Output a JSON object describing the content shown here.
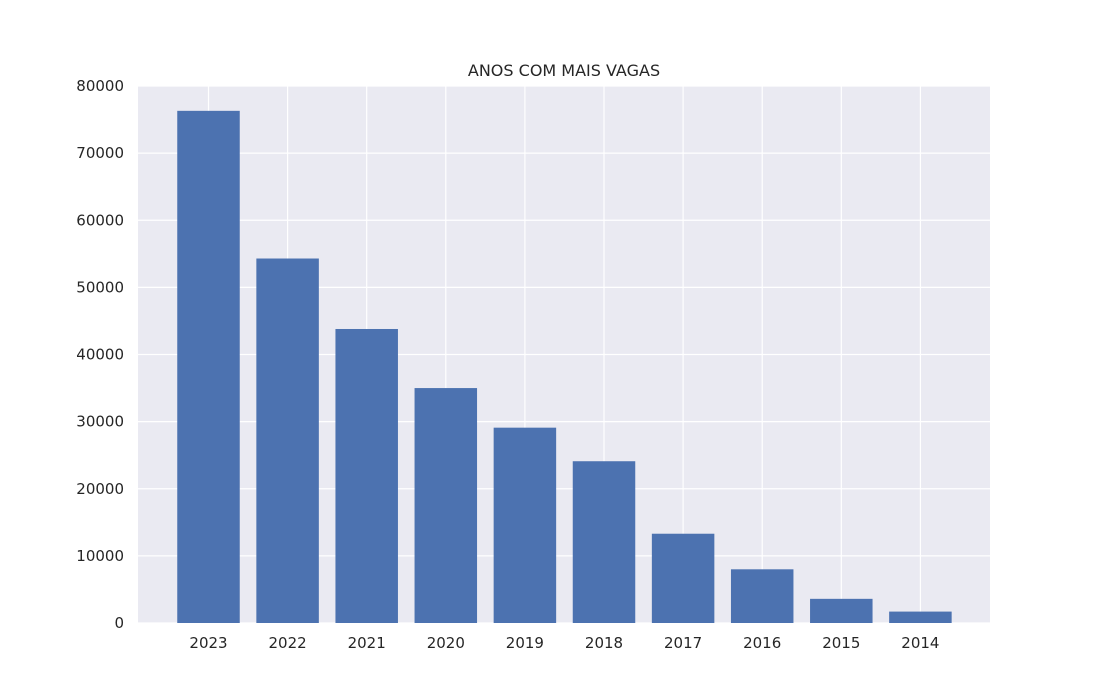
{
  "chart_data": {
    "type": "bar",
    "title": "ANOS COM MAIS VAGAS",
    "xlabel": "",
    "ylabel": "",
    "categories": [
      "2023",
      "2022",
      "2021",
      "2020",
      "2019",
      "2018",
      "2017",
      "2016",
      "2015",
      "2014"
    ],
    "values": [
      76300,
      54300,
      43800,
      35000,
      29100,
      24100,
      13300,
      8000,
      3600,
      1700
    ],
    "ylim": [
      0,
      80000
    ],
    "yticks": [
      0,
      10000,
      20000,
      30000,
      40000,
      50000,
      60000,
      70000,
      80000
    ],
    "ytick_labels": [
      "0",
      "10000",
      "20000",
      "30000",
      "40000",
      "50000",
      "60000",
      "70000",
      "80000"
    ],
    "grid": true,
    "colors": {
      "bar": "#4c72b0",
      "plot_background": "#eaeaf2",
      "grid": "#ffffff",
      "text": "#262626"
    }
  }
}
